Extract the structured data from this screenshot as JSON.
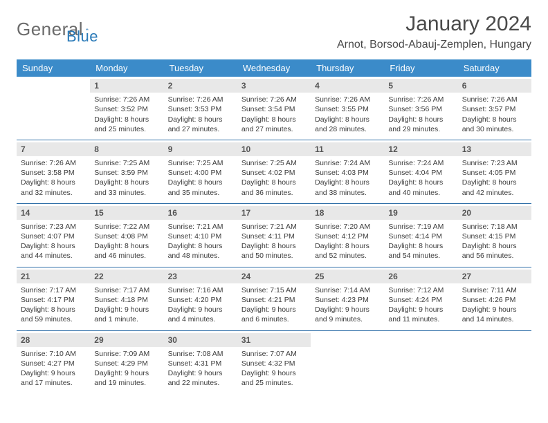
{
  "brand": {
    "part1": "General",
    "part2": "Blue"
  },
  "title": "January 2024",
  "location": "Arnot, Borsod-Abauj-Zemplen, Hungary",
  "colors": {
    "header_bg": "#3b8bc9",
    "header_text": "#ffffff",
    "daynum_bg": "#e8e8e8",
    "row_divider": "#2f6fa8",
    "body_text": "#3a3a3a",
    "title_text": "#4a4a4a",
    "brand_gray": "#6b6b6b",
    "brand_blue": "#2a7ab8",
    "page_bg": "#ffffff"
  },
  "typography": {
    "body_font": "Arial",
    "title_size_pt": 22,
    "location_size_pt": 12,
    "header_size_pt": 10,
    "cell_size_pt": 8
  },
  "day_headers": [
    "Sunday",
    "Monday",
    "Tuesday",
    "Wednesday",
    "Thursday",
    "Friday",
    "Saturday"
  ],
  "weeks": [
    [
      {
        "n": "",
        "empty": true
      },
      {
        "n": "1",
        "sr": "Sunrise: 7:26 AM",
        "ss": "Sunset: 3:52 PM",
        "d1": "Daylight: 8 hours",
        "d2": "and 25 minutes."
      },
      {
        "n": "2",
        "sr": "Sunrise: 7:26 AM",
        "ss": "Sunset: 3:53 PM",
        "d1": "Daylight: 8 hours",
        "d2": "and 27 minutes."
      },
      {
        "n": "3",
        "sr": "Sunrise: 7:26 AM",
        "ss": "Sunset: 3:54 PM",
        "d1": "Daylight: 8 hours",
        "d2": "and 27 minutes."
      },
      {
        "n": "4",
        "sr": "Sunrise: 7:26 AM",
        "ss": "Sunset: 3:55 PM",
        "d1": "Daylight: 8 hours",
        "d2": "and 28 minutes."
      },
      {
        "n": "5",
        "sr": "Sunrise: 7:26 AM",
        "ss": "Sunset: 3:56 PM",
        "d1": "Daylight: 8 hours",
        "d2": "and 29 minutes."
      },
      {
        "n": "6",
        "sr": "Sunrise: 7:26 AM",
        "ss": "Sunset: 3:57 PM",
        "d1": "Daylight: 8 hours",
        "d2": "and 30 minutes."
      }
    ],
    [
      {
        "n": "7",
        "sr": "Sunrise: 7:26 AM",
        "ss": "Sunset: 3:58 PM",
        "d1": "Daylight: 8 hours",
        "d2": "and 32 minutes."
      },
      {
        "n": "8",
        "sr": "Sunrise: 7:25 AM",
        "ss": "Sunset: 3:59 PM",
        "d1": "Daylight: 8 hours",
        "d2": "and 33 minutes."
      },
      {
        "n": "9",
        "sr": "Sunrise: 7:25 AM",
        "ss": "Sunset: 4:00 PM",
        "d1": "Daylight: 8 hours",
        "d2": "and 35 minutes."
      },
      {
        "n": "10",
        "sr": "Sunrise: 7:25 AM",
        "ss": "Sunset: 4:02 PM",
        "d1": "Daylight: 8 hours",
        "d2": "and 36 minutes."
      },
      {
        "n": "11",
        "sr": "Sunrise: 7:24 AM",
        "ss": "Sunset: 4:03 PM",
        "d1": "Daylight: 8 hours",
        "d2": "and 38 minutes."
      },
      {
        "n": "12",
        "sr": "Sunrise: 7:24 AM",
        "ss": "Sunset: 4:04 PM",
        "d1": "Daylight: 8 hours",
        "d2": "and 40 minutes."
      },
      {
        "n": "13",
        "sr": "Sunrise: 7:23 AM",
        "ss": "Sunset: 4:05 PM",
        "d1": "Daylight: 8 hours",
        "d2": "and 42 minutes."
      }
    ],
    [
      {
        "n": "14",
        "sr": "Sunrise: 7:23 AM",
        "ss": "Sunset: 4:07 PM",
        "d1": "Daylight: 8 hours",
        "d2": "and 44 minutes."
      },
      {
        "n": "15",
        "sr": "Sunrise: 7:22 AM",
        "ss": "Sunset: 4:08 PM",
        "d1": "Daylight: 8 hours",
        "d2": "and 46 minutes."
      },
      {
        "n": "16",
        "sr": "Sunrise: 7:21 AM",
        "ss": "Sunset: 4:10 PM",
        "d1": "Daylight: 8 hours",
        "d2": "and 48 minutes."
      },
      {
        "n": "17",
        "sr": "Sunrise: 7:21 AM",
        "ss": "Sunset: 4:11 PM",
        "d1": "Daylight: 8 hours",
        "d2": "and 50 minutes."
      },
      {
        "n": "18",
        "sr": "Sunrise: 7:20 AM",
        "ss": "Sunset: 4:12 PM",
        "d1": "Daylight: 8 hours",
        "d2": "and 52 minutes."
      },
      {
        "n": "19",
        "sr": "Sunrise: 7:19 AM",
        "ss": "Sunset: 4:14 PM",
        "d1": "Daylight: 8 hours",
        "d2": "and 54 minutes."
      },
      {
        "n": "20",
        "sr": "Sunrise: 7:18 AM",
        "ss": "Sunset: 4:15 PM",
        "d1": "Daylight: 8 hours",
        "d2": "and 56 minutes."
      }
    ],
    [
      {
        "n": "21",
        "sr": "Sunrise: 7:17 AM",
        "ss": "Sunset: 4:17 PM",
        "d1": "Daylight: 8 hours",
        "d2": "and 59 minutes."
      },
      {
        "n": "22",
        "sr": "Sunrise: 7:17 AM",
        "ss": "Sunset: 4:18 PM",
        "d1": "Daylight: 9 hours",
        "d2": "and 1 minute."
      },
      {
        "n": "23",
        "sr": "Sunrise: 7:16 AM",
        "ss": "Sunset: 4:20 PM",
        "d1": "Daylight: 9 hours",
        "d2": "and 4 minutes."
      },
      {
        "n": "24",
        "sr": "Sunrise: 7:15 AM",
        "ss": "Sunset: 4:21 PM",
        "d1": "Daylight: 9 hours",
        "d2": "and 6 minutes."
      },
      {
        "n": "25",
        "sr": "Sunrise: 7:14 AM",
        "ss": "Sunset: 4:23 PM",
        "d1": "Daylight: 9 hours",
        "d2": "and 9 minutes."
      },
      {
        "n": "26",
        "sr": "Sunrise: 7:12 AM",
        "ss": "Sunset: 4:24 PM",
        "d1": "Daylight: 9 hours",
        "d2": "and 11 minutes."
      },
      {
        "n": "27",
        "sr": "Sunrise: 7:11 AM",
        "ss": "Sunset: 4:26 PM",
        "d1": "Daylight: 9 hours",
        "d2": "and 14 minutes."
      }
    ],
    [
      {
        "n": "28",
        "sr": "Sunrise: 7:10 AM",
        "ss": "Sunset: 4:27 PM",
        "d1": "Daylight: 9 hours",
        "d2": "and 17 minutes."
      },
      {
        "n": "29",
        "sr": "Sunrise: 7:09 AM",
        "ss": "Sunset: 4:29 PM",
        "d1": "Daylight: 9 hours",
        "d2": "and 19 minutes."
      },
      {
        "n": "30",
        "sr": "Sunrise: 7:08 AM",
        "ss": "Sunset: 4:31 PM",
        "d1": "Daylight: 9 hours",
        "d2": "and 22 minutes."
      },
      {
        "n": "31",
        "sr": "Sunrise: 7:07 AM",
        "ss": "Sunset: 4:32 PM",
        "d1": "Daylight: 9 hours",
        "d2": "and 25 minutes."
      },
      {
        "n": "",
        "empty": true
      },
      {
        "n": "",
        "empty": true
      },
      {
        "n": "",
        "empty": true
      }
    ]
  ]
}
